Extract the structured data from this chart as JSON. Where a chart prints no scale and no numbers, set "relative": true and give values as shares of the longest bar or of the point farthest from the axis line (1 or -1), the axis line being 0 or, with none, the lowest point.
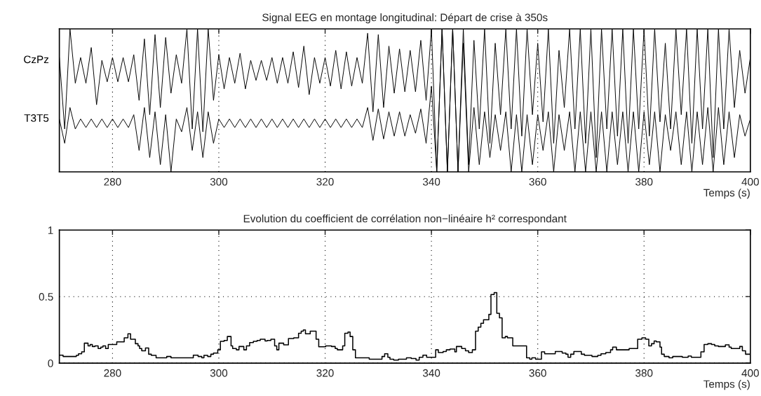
{
  "chart_data": [
    {
      "type": "line",
      "title": "Signal EEG en montage longitudinal: Départ de crise à 350s",
      "xlabel": "Temps (s)",
      "relative": true,
      "xlim": [
        270,
        400
      ],
      "xticks": [
        280,
        300,
        320,
        340,
        360,
        380,
        400
      ],
      "grid": "x",
      "tick_labels": "x",
      "x": [
        270,
        271,
        272,
        273,
        274,
        275,
        276,
        277,
        278,
        279,
        280,
        281,
        282,
        283,
        284,
        285,
        286,
        287,
        288,
        289,
        290,
        291,
        292,
        293,
        294,
        295,
        296,
        297,
        298,
        299,
        300,
        301,
        302,
        303,
        304,
        305,
        306,
        307,
        308,
        309,
        310,
        311,
        312,
        313,
        314,
        315,
        316,
        317,
        318,
        319,
        320,
        321,
        322,
        323,
        324,
        325,
        326,
        327,
        328,
        329,
        330,
        331,
        332,
        333,
        334,
        335,
        336,
        337,
        338,
        339,
        340,
        341,
        342,
        343,
        344,
        345,
        346,
        347,
        348,
        349,
        350,
        351,
        352,
        353,
        354,
        355,
        356,
        357,
        358,
        359,
        360,
        361,
        362,
        363,
        364,
        365,
        366,
        367,
        368,
        369,
        370,
        371,
        372,
        373,
        374,
        375,
        376,
        377,
        378,
        379,
        380,
        381,
        382,
        383,
        384,
        385,
        386,
        387,
        388,
        389,
        390,
        391,
        392,
        393,
        394,
        395,
        396,
        397,
        398,
        399,
        400
      ],
      "series": [
        {
          "name": "CzPz",
          "color": "#000000",
          "values": [
            0.8,
            0.3,
            1.0,
            0.62,
            0.8,
            0.62,
            0.87,
            0.47,
            0.78,
            0.63,
            0.8,
            0.63,
            0.8,
            0.63,
            0.82,
            0.5,
            0.93,
            0.4,
            0.96,
            0.45,
            0.94,
            0.55,
            0.82,
            0.62,
            1.0,
            0.3,
            1.0,
            0.28,
            1.0,
            0.5,
            0.82,
            0.58,
            0.8,
            0.62,
            0.83,
            0.58,
            0.78,
            0.64,
            0.78,
            0.64,
            0.8,
            0.62,
            0.8,
            0.62,
            0.84,
            0.59,
            0.88,
            0.54,
            0.8,
            0.62,
            0.8,
            0.6,
            0.85,
            0.58,
            0.84,
            0.6,
            0.8,
            0.62,
            0.97,
            0.42,
            0.96,
            0.45,
            0.88,
            0.55,
            0.86,
            0.56,
            0.85,
            0.56,
            0.92,
            0.5,
            1.0,
            0.0,
            1.0,
            0.0,
            1.0,
            0.0,
            1.0,
            0.05,
            0.92,
            0.3,
            1.0,
            0.2,
            0.9,
            0.4,
            1.0,
            0.3,
            1.0,
            0.25,
            1.0,
            0.4,
            0.9,
            0.35,
            1.0,
            0.2,
            0.85,
            0.45,
            1.0,
            0.3,
            1.0,
            0.2,
            1.0,
            0.1,
            1.0,
            0.3,
            1.0,
            0.25,
            1.0,
            0.2,
            1.0,
            0.3,
            1.0,
            0.25,
            1.0,
            0.35,
            0.9,
            0.3,
            1.0,
            0.4,
            1.0,
            0.2,
            1.0,
            0.3,
            1.0,
            0.1,
            1.0,
            0.3,
            1.0,
            0.45,
            0.85,
            0.55,
            0.8
          ]
        },
        {
          "name": "T3T5",
          "color": "#000000",
          "values": [
            0.37,
            0.2,
            0.45,
            0.3,
            0.37,
            0.31,
            0.37,
            0.31,
            0.37,
            0.31,
            0.37,
            0.31,
            0.37,
            0.31,
            0.4,
            0.15,
            0.45,
            0.1,
            0.42,
            0.05,
            0.4,
            0.0,
            0.37,
            0.28,
            0.45,
            0.15,
            0.42,
            0.1,
            0.42,
            0.2,
            0.37,
            0.31,
            0.37,
            0.31,
            0.37,
            0.31,
            0.37,
            0.31,
            0.37,
            0.31,
            0.37,
            0.31,
            0.37,
            0.31,
            0.37,
            0.31,
            0.37,
            0.31,
            0.37,
            0.31,
            0.37,
            0.31,
            0.37,
            0.31,
            0.37,
            0.31,
            0.37,
            0.31,
            0.45,
            0.22,
            0.44,
            0.23,
            0.42,
            0.25,
            0.42,
            0.25,
            0.4,
            0.27,
            0.44,
            0.2,
            0.6,
            0.0,
            1.0,
            0.0,
            1.0,
            0.0,
            0.9,
            0.0,
            0.45,
            0.05,
            0.42,
            0.1,
            0.4,
            0.15,
            0.42,
            0.0,
            0.4,
            0.0,
            0.4,
            0.05,
            0.4,
            0.15,
            0.42,
            0.0,
            0.4,
            0.15,
            0.42,
            0.0,
            0.42,
            0.0,
            0.42,
            0.0,
            0.42,
            0.0,
            0.42,
            0.05,
            0.42,
            0.0,
            0.42,
            0.0,
            0.42,
            0.05,
            0.42,
            0.0,
            0.4,
            0.15,
            0.42,
            0.05,
            0.42,
            0.0,
            0.42,
            0.05,
            0.45,
            0.0,
            0.45,
            0.05,
            0.42,
            0.1,
            0.4,
            0.25,
            0.37
          ]
        }
      ]
    },
    {
      "type": "step",
      "title": "Evolution du coefficient de corrélation non−linéaire h² correspondant",
      "xlabel": "Temps (s)",
      "xlim": [
        270,
        400
      ],
      "xticks": [
        280,
        300,
        320,
        340,
        360,
        380,
        400
      ],
      "ylim": [
        0,
        1
      ],
      "yticks": [
        0,
        0.5,
        1
      ],
      "grid": true,
      "series": [
        {
          "color": "#000000",
          "x": [
            270,
            270.7,
            273.2,
            273.6,
            274.2,
            274.7,
            275.4,
            275.8,
            276.2,
            276.7,
            277.3,
            277.8,
            278.2,
            278.7,
            279.2,
            280,
            280.8,
            282.2,
            282.9,
            283.4,
            284.3,
            284.8,
            285.1,
            285.5,
            286.2,
            286.8,
            287.3,
            288.2,
            290.2,
            291.0,
            295.2,
            296.1,
            296.8,
            297.2,
            297.9,
            298.5,
            299.0,
            299.8,
            300.3,
            301.0,
            301.6,
            302.3,
            302.6,
            303.3,
            303.8,
            304.7,
            305.2,
            305.8,
            306.5,
            307.2,
            307.8,
            308.7,
            309.1,
            309.8,
            310.5,
            310.9,
            311.3,
            312.2,
            313.1,
            314.1,
            315.0,
            315.5,
            315.9,
            316.3,
            317.2,
            318.3,
            318.8,
            320.1,
            321.2,
            321.9,
            322.3,
            323.3,
            323.7,
            324.3,
            324.7,
            325.2,
            325.7,
            328.3,
            330.7,
            331.2,
            331.8,
            332.2,
            332.9,
            333.8,
            335.3,
            336.2,
            337.1,
            337.7,
            338.4,
            339.1,
            340.8,
            341.3,
            342.2,
            342.8,
            343.5,
            344.4,
            344.7,
            345.7,
            346.4,
            347.0,
            347.7,
            348.3,
            348.8,
            349.3,
            349.8,
            350.8,
            351.2,
            351.8,
            352.3,
            352.8,
            353.3,
            353.9,
            354.3,
            355.3,
            357.9,
            358.5,
            358.9,
            359.6,
            360.7,
            361.3,
            363.3,
            364.6,
            365.3,
            365.7,
            366.2,
            366.8,
            368.2,
            368.8,
            370.2,
            371.3,
            371.9,
            372.8,
            373.7,
            374.1,
            374.8,
            377.2,
            378.8,
            379.6,
            380.3,
            380.9,
            381.4,
            381.9,
            382.3,
            383.0,
            383.3,
            383.8,
            384.7,
            385.4,
            387.2,
            388.3,
            388.9,
            390.7,
            391.3,
            392.0,
            392.7,
            393.3,
            394.0,
            395.3,
            396.0,
            396.4,
            398.0,
            398.5,
            399.1,
            400
          ],
          "values": [
            0.06,
            0.05,
            0.058,
            0.07,
            0.085,
            0.15,
            0.13,
            0.14,
            0.125,
            0.13,
            0.11,
            0.12,
            0.13,
            0.11,
            0.14,
            0.14,
            0.16,
            0.19,
            0.22,
            0.18,
            0.146,
            0.13,
            0.11,
            0.093,
            0.114,
            0.067,
            0.058,
            0.04,
            0.05,
            0.04,
            0.06,
            0.05,
            0.04,
            0.058,
            0.05,
            0.067,
            0.076,
            0.1,
            0.164,
            0.17,
            0.2,
            0.13,
            0.11,
            0.1,
            0.125,
            0.1,
            0.13,
            0.155,
            0.164,
            0.17,
            0.18,
            0.167,
            0.17,
            0.18,
            0.13,
            0.1,
            0.15,
            0.137,
            0.185,
            0.19,
            0.225,
            0.24,
            0.25,
            0.22,
            0.24,
            0.18,
            0.123,
            0.13,
            0.125,
            0.11,
            0.1,
            0.13,
            0.225,
            0.234,
            0.2,
            0.1,
            0.04,
            0.03,
            0.05,
            0.07,
            0.044,
            0.03,
            0.023,
            0.03,
            0.04,
            0.035,
            0.023,
            0.044,
            0.06,
            0.044,
            0.1,
            0.08,
            0.088,
            0.1,
            0.106,
            0.085,
            0.125,
            0.11,
            0.093,
            0.08,
            0.1,
            0.24,
            0.27,
            0.3,
            0.326,
            0.366,
            0.516,
            0.53,
            0.375,
            0.34,
            0.19,
            0.2,
            0.19,
            0.13,
            0.04,
            0.03,
            0.04,
            0.03,
            0.085,
            0.07,
            0.088,
            0.076,
            0.067,
            0.044,
            0.067,
            0.088,
            0.067,
            0.058,
            0.05,
            0.058,
            0.07,
            0.08,
            0.1,
            0.12,
            0.1,
            0.11,
            0.18,
            0.19,
            0.18,
            0.13,
            0.146,
            0.167,
            0.16,
            0.12,
            0.067,
            0.05,
            0.04,
            0.05,
            0.044,
            0.053,
            0.044,
            0.085,
            0.14,
            0.146,
            0.14,
            0.13,
            0.125,
            0.137,
            0.12,
            0.11,
            0.125,
            0.093,
            0.067,
            0.067
          ]
        }
      ]
    }
  ]
}
